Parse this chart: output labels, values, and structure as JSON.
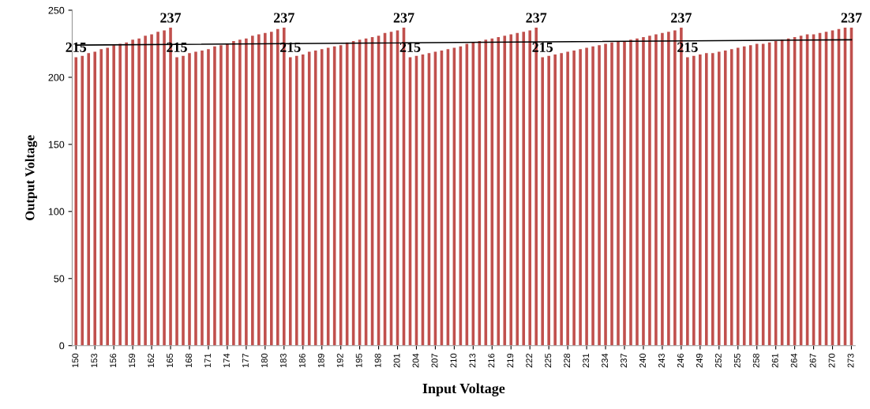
{
  "chart_data": {
    "type": "bar",
    "xlabel": "Input Voltage",
    "ylabel": "Output Voltage",
    "x": [
      150,
      151,
      152,
      153,
      154,
      155,
      156,
      157,
      158,
      159,
      160,
      161,
      162,
      163,
      164,
      165,
      166,
      167,
      168,
      169,
      170,
      171,
      172,
      173,
      174,
      175,
      176,
      177,
      178,
      179,
      180,
      181,
      182,
      183,
      184,
      185,
      186,
      187,
      188,
      189,
      190,
      191,
      192,
      193,
      194,
      195,
      196,
      197,
      198,
      199,
      200,
      201,
      202,
      203,
      204,
      205,
      206,
      207,
      208,
      209,
      210,
      211,
      212,
      213,
      214,
      215,
      216,
      217,
      218,
      219,
      220,
      221,
      222,
      223,
      224,
      225,
      226,
      227,
      228,
      229,
      230,
      231,
      232,
      233,
      234,
      235,
      236,
      237,
      238,
      239,
      240,
      241,
      242,
      243,
      244,
      245,
      246,
      247,
      248,
      249,
      250,
      251,
      252,
      253,
      254,
      255,
      256,
      257,
      258,
      259,
      260,
      261,
      262,
      263,
      264,
      265,
      266,
      267,
      268,
      269,
      270,
      271,
      272,
      273
    ],
    "series": [
      {
        "color": "#c0504d",
        "values": [
          215,
          216,
          218,
          219,
          221,
          222,
          224,
          225,
          226,
          228,
          229,
          231,
          232,
          234,
          235,
          237,
          215,
          216,
          218,
          219,
          220,
          221,
          223,
          224,
          225,
          227,
          228,
          229,
          231,
          232,
          233,
          234,
          236,
          237,
          215,
          216,
          217,
          219,
          220,
          221,
          222,
          223,
          224,
          226,
          227,
          228,
          229,
          230,
          231,
          233,
          234,
          235,
          237,
          215,
          216,
          217,
          218,
          219,
          220,
          221,
          222,
          223,
          225,
          226,
          227,
          228,
          229,
          230,
          231,
          232,
          233,
          234,
          235,
          237,
          215,
          216,
          217,
          218,
          219,
          220,
          221,
          222,
          223,
          224,
          225,
          226,
          227,
          227,
          228,
          229,
          230,
          231,
          232,
          233,
          234,
          235,
          237,
          215,
          216,
          217,
          218,
          218,
          219,
          220,
          221,
          222,
          223,
          224,
          225,
          225,
          226,
          227,
          228,
          229,
          230,
          231,
          232,
          232,
          233,
          234,
          235,
          236,
          237,
          237
        ]
      },
      {
        "type": "line",
        "color": "#000000",
        "x": [
          150,
          273
        ],
        "values": [
          224,
          228
        ]
      }
    ],
    "xlim": [
      149.4,
      273.6
    ],
    "xticks": [
      150,
      153,
      156,
      159,
      162,
      165,
      168,
      171,
      174,
      177,
      180,
      183,
      186,
      189,
      192,
      195,
      198,
      201,
      204,
      207,
      210,
      213,
      216,
      219,
      222,
      225,
      228,
      231,
      234,
      237,
      240,
      243,
      246,
      249,
      252,
      255,
      258,
      261,
      264,
      267,
      270,
      273
    ],
    "ylim": [
      0,
      250
    ],
    "yticks": [
      0,
      50,
      100,
      150,
      200,
      250
    ],
    "annotations": [
      {
        "text": "215",
        "x": 150,
        "y": 215
      },
      {
        "text": "237",
        "x": 165,
        "y": 237
      },
      {
        "text": "215",
        "x": 166,
        "y": 215
      },
      {
        "text": "237",
        "x": 183,
        "y": 237
      },
      {
        "text": "215",
        "x": 184,
        "y": 215
      },
      {
        "text": "237",
        "x": 202,
        "y": 237
      },
      {
        "text": "215",
        "x": 203,
        "y": 215
      },
      {
        "text": "237",
        "x": 223,
        "y": 237
      },
      {
        "text": "215",
        "x": 224,
        "y": 215
      },
      {
        "text": "237",
        "x": 246,
        "y": 237
      },
      {
        "text": "215",
        "x": 247,
        "y": 215
      },
      {
        "text": "237",
        "x": 273,
        "y": 237
      }
    ]
  }
}
